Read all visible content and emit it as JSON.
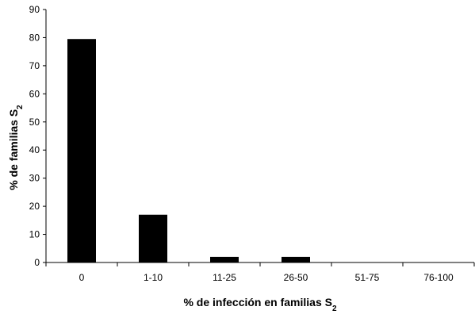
{
  "chart_data": {
    "type": "bar",
    "categories": [
      "0",
      "1-10",
      "11-25",
      "26-50",
      "51-75",
      "76-100"
    ],
    "series": [
      {
        "values": [
          79.5,
          17,
          2,
          2,
          0,
          0
        ]
      }
    ],
    "xlabel": {
      "text": "% de infección en familias S",
      "subscript": "2"
    },
    "ylabel": {
      "text": "% de familias S",
      "subscript": "2"
    },
    "ylim": [
      0,
      90
    ],
    "yticks": [
      0,
      10,
      20,
      30,
      40,
      50,
      60,
      70,
      80,
      90
    ],
    "grid": false,
    "legend": "none",
    "bar_color": "#000000"
  }
}
